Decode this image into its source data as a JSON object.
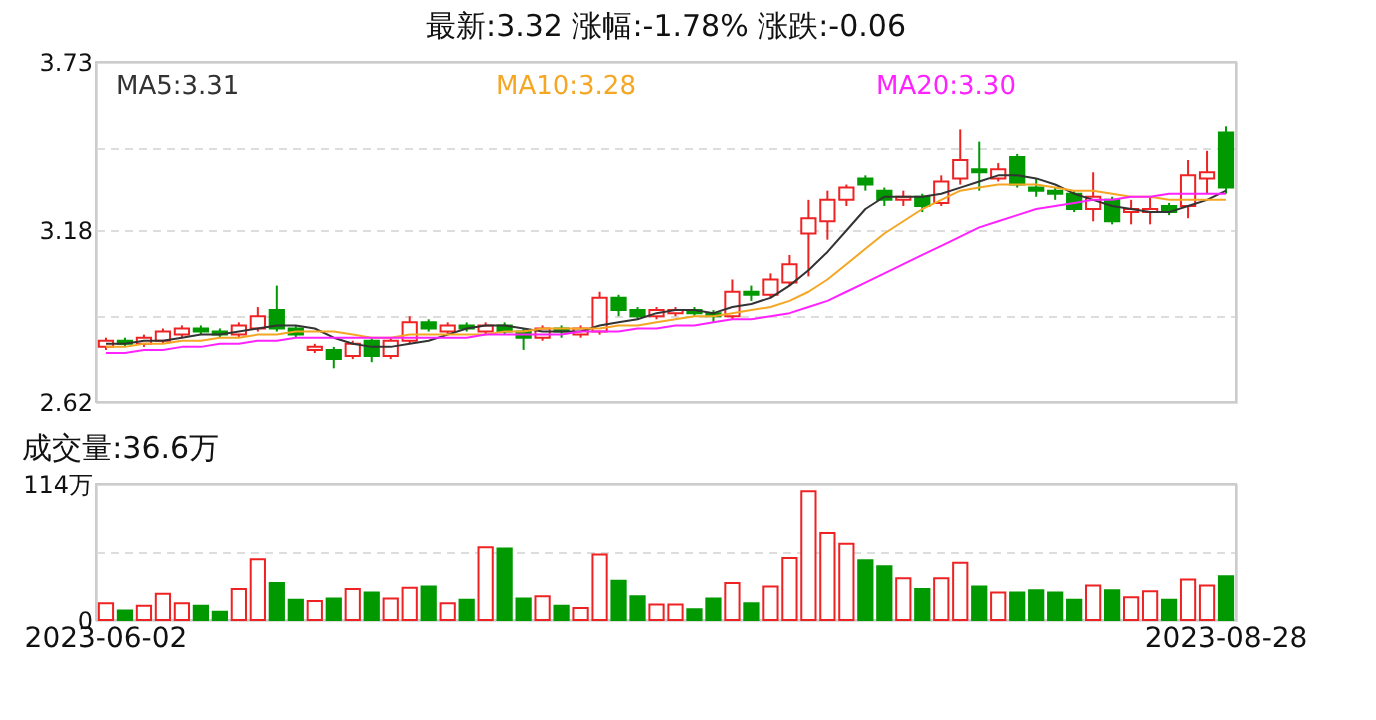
{
  "chart_data": [
    {
      "type": "candlestick",
      "title": "最新:3.32  涨幅:-1.78%  涨跌:-0.06",
      "categories": [
        "2023-06-02",
        null,
        null,
        null,
        null,
        null,
        null,
        null,
        null,
        null,
        null,
        null,
        null,
        null,
        null,
        null,
        null,
        null,
        null,
        null,
        null,
        null,
        null,
        null,
        null,
        null,
        null,
        null,
        null,
        null,
        null,
        null,
        null,
        null,
        null,
        null,
        null,
        null,
        null,
        null,
        null,
        null,
        null,
        null,
        null,
        null,
        null,
        null,
        null,
        null,
        null,
        null,
        null,
        null,
        null,
        null,
        null,
        null,
        null,
        "2023-08-28"
      ],
      "ohlc": [
        [
          2.8,
          2.83,
          2.79,
          2.82
        ],
        [
          2.82,
          2.83,
          2.8,
          2.81
        ],
        [
          2.81,
          2.84,
          2.8,
          2.83
        ],
        [
          2.82,
          2.86,
          2.81,
          2.85
        ],
        [
          2.84,
          2.87,
          2.83,
          2.86
        ],
        [
          2.86,
          2.87,
          2.84,
          2.85
        ],
        [
          2.85,
          2.86,
          2.83,
          2.84
        ],
        [
          2.84,
          2.88,
          2.83,
          2.87
        ],
        [
          2.86,
          2.93,
          2.85,
          2.9
        ],
        [
          2.92,
          3.0,
          2.85,
          2.86
        ],
        [
          2.86,
          2.87,
          2.83,
          2.84
        ],
        [
          2.79,
          2.81,
          2.78,
          2.8
        ],
        [
          2.79,
          2.8,
          2.73,
          2.76
        ],
        [
          2.77,
          2.82,
          2.76,
          2.81
        ],
        [
          2.82,
          2.83,
          2.75,
          2.77
        ],
        [
          2.77,
          2.83,
          2.76,
          2.82
        ],
        [
          2.82,
          2.9,
          2.81,
          2.88
        ],
        [
          2.88,
          2.89,
          2.85,
          2.86
        ],
        [
          2.85,
          2.88,
          2.84,
          2.87
        ],
        [
          2.87,
          2.88,
          2.85,
          2.86
        ],
        [
          2.85,
          2.88,
          2.84,
          2.87
        ],
        [
          2.87,
          2.88,
          2.84,
          2.85
        ],
        [
          2.85,
          2.86,
          2.79,
          2.83
        ],
        [
          2.83,
          2.87,
          2.82,
          2.86
        ],
        [
          2.86,
          2.87,
          2.83,
          2.85
        ],
        [
          2.84,
          2.87,
          2.83,
          2.86
        ],
        [
          2.85,
          2.98,
          2.84,
          2.96
        ],
        [
          2.96,
          2.97,
          2.9,
          2.92
        ],
        [
          2.92,
          2.93,
          2.89,
          2.9
        ],
        [
          2.9,
          2.93,
          2.89,
          2.92
        ],
        [
          2.91,
          2.93,
          2.9,
          2.92
        ],
        [
          2.92,
          2.93,
          2.9,
          2.91
        ],
        [
          2.91,
          2.92,
          2.88,
          2.9
        ],
        [
          2.9,
          3.02,
          2.89,
          2.98
        ],
        [
          2.98,
          3.0,
          2.95,
          2.97
        ],
        [
          2.97,
          3.04,
          2.96,
          3.02
        ],
        [
          3.01,
          3.1,
          3.0,
          3.07
        ],
        [
          3.17,
          3.28,
          3.03,
          3.22
        ],
        [
          3.21,
          3.31,
          3.15,
          3.28
        ],
        [
          3.28,
          3.33,
          3.26,
          3.32
        ],
        [
          3.35,
          3.36,
          3.31,
          3.33
        ],
        [
          3.31,
          3.32,
          3.26,
          3.28
        ],
        [
          3.28,
          3.31,
          3.26,
          3.29
        ],
        [
          3.29,
          3.3,
          3.24,
          3.26
        ],
        [
          3.27,
          3.36,
          3.26,
          3.34
        ],
        [
          3.35,
          3.51,
          3.33,
          3.41
        ],
        [
          3.38,
          3.47,
          3.31,
          3.37
        ],
        [
          3.35,
          3.4,
          3.34,
          3.38
        ],
        [
          3.42,
          3.43,
          3.32,
          3.33
        ],
        [
          3.32,
          3.35,
          3.29,
          3.31
        ],
        [
          3.31,
          3.32,
          3.28,
          3.3
        ],
        [
          3.3,
          3.31,
          3.24,
          3.25
        ],
        [
          3.25,
          3.37,
          3.21,
          3.29
        ],
        [
          3.28,
          3.29,
          3.2,
          3.21
        ],
        [
          3.24,
          3.28,
          3.2,
          3.25
        ],
        [
          3.24,
          3.29,
          3.2,
          3.25
        ],
        [
          3.26,
          3.27,
          3.23,
          3.24
        ],
        [
          3.26,
          3.41,
          3.22,
          3.36
        ],
        [
          3.35,
          3.44,
          3.3,
          3.37
        ],
        [
          3.5,
          3.52,
          3.3,
          3.32
        ]
      ],
      "colors": [
        "#ee2222",
        "#009900",
        "#ee2222",
        "#ee2222",
        "#ee2222",
        "#009900",
        "#009900",
        "#ee2222",
        "#ee2222",
        "#009900",
        "#009900",
        "#ee2222",
        "#009900",
        "#ee2222",
        "#009900",
        "#ee2222",
        "#ee2222",
        "#009900",
        "#ee2222",
        "#009900",
        "#ee2222",
        "#009900",
        "#009900",
        "#ee2222",
        "#009900",
        "#ee2222",
        "#ee2222",
        "#009900",
        "#009900",
        "#ee2222",
        "#ee2222",
        "#009900",
        "#009900",
        "#ee2222",
        "#009900",
        "#ee2222",
        "#ee2222",
        "#ee2222",
        "#ee2222",
        "#ee2222",
        "#009900",
        "#009900",
        "#ee2222",
        "#009900",
        "#ee2222",
        "#ee2222",
        "#009900",
        "#ee2222",
        "#009900",
        "#009900",
        "#009900",
        "#009900",
        "#ee2222",
        "#009900",
        "#ee2222",
        "#ee2222",
        "#009900",
        "#ee2222",
        "#ee2222",
        "#009900"
      ],
      "series": [
        {
          "name": "MA5:3.31",
          "type": "line",
          "color": "#333333",
          "values": [
            2.81,
            2.81,
            2.82,
            2.82,
            2.83,
            2.84,
            2.84,
            2.85,
            2.86,
            2.87,
            2.87,
            2.86,
            2.83,
            2.81,
            2.8,
            2.8,
            2.81,
            2.82,
            2.84,
            2.86,
            2.87,
            2.87,
            2.86,
            2.85,
            2.85,
            2.85,
            2.87,
            2.88,
            2.89,
            2.91,
            2.92,
            2.92,
            2.91,
            2.93,
            2.94,
            2.96,
            3.0,
            3.05,
            3.11,
            3.18,
            3.25,
            3.29,
            3.29,
            3.29,
            3.3,
            3.32,
            3.34,
            3.36,
            3.36,
            3.35,
            3.33,
            3.3,
            3.28,
            3.26,
            3.25,
            3.24,
            3.24,
            3.26,
            3.28,
            3.31
          ]
        },
        {
          "name": "MA10:3.28",
          "type": "line",
          "color": "#f5a623",
          "values": [
            2.8,
            2.8,
            2.81,
            2.81,
            2.82,
            2.82,
            2.83,
            2.83,
            2.84,
            2.84,
            2.85,
            2.85,
            2.85,
            2.84,
            2.83,
            2.83,
            2.84,
            2.84,
            2.84,
            2.84,
            2.84,
            2.85,
            2.85,
            2.86,
            2.86,
            2.86,
            2.86,
            2.87,
            2.87,
            2.88,
            2.89,
            2.9,
            2.9,
            2.91,
            2.92,
            2.93,
            2.95,
            2.98,
            3.02,
            3.07,
            3.12,
            3.17,
            3.21,
            3.25,
            3.28,
            3.31,
            3.32,
            3.33,
            3.33,
            3.33,
            3.32,
            3.31,
            3.31,
            3.3,
            3.29,
            3.29,
            3.28,
            3.28,
            3.28,
            3.28
          ]
        },
        {
          "name": "MA20:3.30",
          "type": "line",
          "color": "#ff22ff",
          "values": [
            2.78,
            2.78,
            2.79,
            2.79,
            2.8,
            2.8,
            2.81,
            2.81,
            2.82,
            2.82,
            2.83,
            2.83,
            2.83,
            2.83,
            2.83,
            2.83,
            2.83,
            2.83,
            2.83,
            2.83,
            2.84,
            2.84,
            2.84,
            2.84,
            2.84,
            2.85,
            2.85,
            2.85,
            2.86,
            2.86,
            2.87,
            2.87,
            2.88,
            2.89,
            2.89,
            2.9,
            2.91,
            2.93,
            2.95,
            2.98,
            3.01,
            3.04,
            3.07,
            3.1,
            3.13,
            3.16,
            3.19,
            3.21,
            3.23,
            3.25,
            3.26,
            3.27,
            3.28,
            3.28,
            3.29,
            3.29,
            3.3,
            3.3,
            3.3,
            3.3
          ]
        }
      ],
      "ylim": [
        2.62,
        3.73
      ],
      "yticks": [
        2.62,
        {
          "value": 2.9,
          "label": null
        },
        3.18,
        {
          "value": 3.45,
          "label": null
        },
        3.73
      ],
      "grid": "y",
      "tick_labels": "y"
    },
    {
      "type": "bar",
      "title": "成交量:36.6万",
      "categories": [
        "2023-06-02",
        null,
        null,
        null,
        null,
        null,
        null,
        null,
        null,
        null,
        null,
        null,
        null,
        null,
        null,
        null,
        null,
        null,
        null,
        null,
        null,
        null,
        null,
        null,
        null,
        null,
        null,
        null,
        null,
        null,
        null,
        null,
        null,
        null,
        null,
        null,
        null,
        null,
        null,
        null,
        null,
        null,
        null,
        null,
        null,
        null,
        null,
        null,
        null,
        null,
        null,
        null,
        null,
        null,
        null,
        null,
        null,
        null,
        null,
        "2023-08-28"
      ],
      "values": [
        14,
        8,
        12,
        22,
        14,
        12,
        7,
        26,
        51,
        31,
        17,
        16,
        18,
        26,
        23,
        18,
        27,
        28,
        14,
        17,
        61,
        60,
        18,
        20,
        12,
        10,
        55,
        33,
        20,
        13,
        13,
        9,
        18,
        31,
        14,
        28,
        52,
        108,
        73,
        64,
        50,
        45,
        35,
        26,
        35,
        48,
        28,
        23,
        23,
        25,
        23,
        17,
        29,
        25,
        19,
        24,
        17,
        34,
        29,
        36.6
      ],
      "colors": [
        "#ee2222",
        "#009900",
        "#ee2222",
        "#ee2222",
        "#ee2222",
        "#009900",
        "#009900",
        "#ee2222",
        "#ee2222",
        "#009900",
        "#009900",
        "#ee2222",
        "#009900",
        "#ee2222",
        "#009900",
        "#ee2222",
        "#ee2222",
        "#009900",
        "#ee2222",
        "#009900",
        "#ee2222",
        "#009900",
        "#009900",
        "#ee2222",
        "#009900",
        "#ee2222",
        "#ee2222",
        "#009900",
        "#009900",
        "#ee2222",
        "#ee2222",
        "#009900",
        "#009900",
        "#ee2222",
        "#009900",
        "#ee2222",
        "#ee2222",
        "#ee2222",
        "#ee2222",
        "#ee2222",
        "#009900",
        "#009900",
        "#ee2222",
        "#009900",
        "#ee2222",
        "#ee2222",
        "#009900",
        "#ee2222",
        "#009900",
        "#009900",
        "#009900",
        "#009900",
        "#ee2222",
        "#009900",
        "#ee2222",
        "#ee2222",
        "#009900",
        "#ee2222",
        "#ee2222",
        "#009900"
      ],
      "ylim": [
        0,
        114
      ],
      "yticks": [
        0,
        {
          "value": 57,
          "label": null
        },
        {
          "value": 114,
          "label": "114万"
        }
      ],
      "grid": "y"
    }
  ]
}
